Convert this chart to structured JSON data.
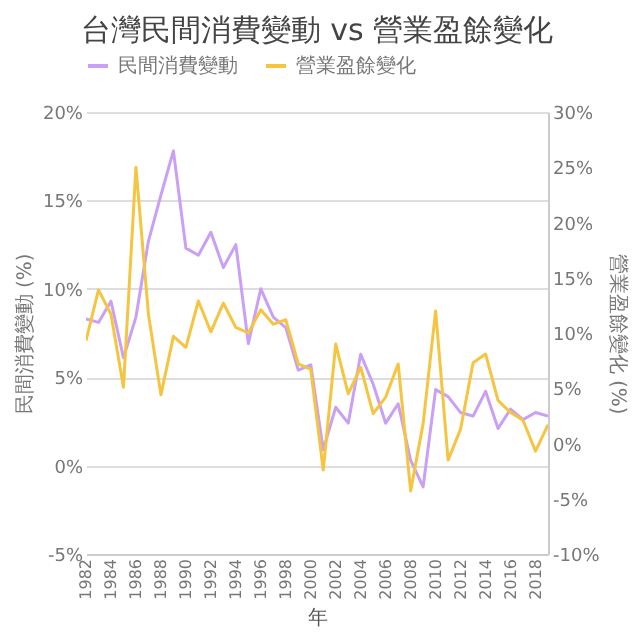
{
  "chart_data": {
    "type": "line",
    "title": "台灣民間消費變動 vs 營業盈餘變化",
    "xlabel": "年",
    "ylabel": "民間消費變動 (%)",
    "y2label": "營業盈餘變化 (%)",
    "x": [
      1982,
      1983,
      1984,
      1985,
      1986,
      1987,
      1988,
      1989,
      1990,
      1991,
      1992,
      1993,
      1994,
      1995,
      1996,
      1997,
      1998,
      1999,
      2000,
      2001,
      2002,
      2003,
      2004,
      2005,
      2006,
      2007,
      2008,
      2009,
      2010,
      2011,
      2012,
      2013,
      2014,
      2015,
      2016,
      2017,
      2018,
      2019
    ],
    "series": [
      {
        "name": "民間消費變動",
        "color": "#c9a0f5",
        "values": [
          8.3,
          8.1,
          9.3,
          6.1,
          8.4,
          12.7,
          15.3,
          17.8,
          12.3,
          11.9,
          13.2,
          11.2,
          12.5,
          6.9,
          10.0,
          8.4,
          7.8,
          5.4,
          5.7,
          0.9,
          3.3,
          2.4,
          6.3,
          4.6,
          2.4,
          3.5,
          0.3,
          -1.2,
          4.3,
          3.9,
          3.0,
          2.8,
          4.2,
          2.1,
          3.2,
          2.6,
          3.0,
          2.8
        ]
      },
      {
        "name": "營業盈餘變化",
        "color": "#f5c542",
        "axis": "y2",
        "values": [
          9.3,
          13.9,
          11.7,
          5.1,
          25.0,
          11.7,
          4.4,
          9.7,
          8.7,
          12.9,
          10.1,
          12.7,
          10.5,
          10.0,
          12.1,
          10.8,
          11.2,
          7.2,
          6.7,
          -2.4,
          9.0,
          4.5,
          6.9,
          2.7,
          4.2,
          7.2,
          -4.3,
          1.8,
          12.0,
          -1.5,
          1.3,
          7.3,
          8.1,
          3.9,
          2.8,
          2.1,
          -0.7,
          1.7
        ]
      }
    ],
    "xlim": [
      1982,
      2019
    ],
    "xticks": [
      1982,
      1984,
      1986,
      1988,
      1990,
      1992,
      1994,
      1996,
      1998,
      2000,
      2002,
      2004,
      2006,
      2008,
      2010,
      2012,
      2014,
      2016,
      2018
    ],
    "ylim": [
      -5,
      20
    ],
    "yticks": [
      {
        "value": -5,
        "label": "-5%"
      },
      {
        "value": 0,
        "label": "0%"
      },
      {
        "value": 5,
        "label": "5%"
      },
      {
        "value": 10,
        "label": "10%"
      },
      {
        "value": 15,
        "label": "15%"
      },
      {
        "value": 20,
        "label": "20%"
      }
    ],
    "y2lim": [
      -10,
      30
    ],
    "y2ticks": [
      {
        "value": -10,
        "label": "-10%"
      },
      {
        "value": -5,
        "label": "-5%"
      },
      {
        "value": 0,
        "label": "0%"
      },
      {
        "value": 5,
        "label": "5%"
      },
      {
        "value": 10,
        "label": "10%"
      },
      {
        "value": 15,
        "label": "15%"
      },
      {
        "value": 20,
        "label": "20%"
      },
      {
        "value": 25,
        "label": "25%"
      },
      {
        "value": 30,
        "label": "30%"
      }
    ],
    "grid": "y",
    "legend": "top",
    "marker": "none",
    "line_style": "solid"
  }
}
